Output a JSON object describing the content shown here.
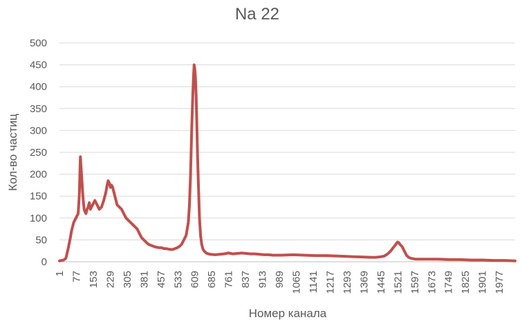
{
  "chart_data": {
    "type": "line",
    "title": "Na 22",
    "xlabel": "Номер канала",
    "ylabel": "Кол-во частиц",
    "ylim": [
      0,
      500
    ],
    "yticks": [
      0,
      50,
      100,
      150,
      200,
      250,
      300,
      350,
      400,
      450,
      500
    ],
    "xlim": [
      1,
      2048
    ],
    "xticks": [
      1,
      77,
      153,
      229,
      305,
      381,
      457,
      533,
      609,
      685,
      761,
      837,
      913,
      989,
      1065,
      1141,
      1217,
      1293,
      1369,
      1445,
      1521,
      1597,
      1673,
      1749,
      1825,
      1901,
      1977
    ],
    "grid": true,
    "legend": "none",
    "series_color": "#c0504d",
    "series": [
      {
        "x": [
          1,
          10,
          20,
          30,
          40,
          50,
          55,
          60,
          65,
          70,
          75,
          80,
          85,
          90,
          95,
          100,
          105,
          108,
          110,
          112,
          115,
          120,
          125,
          130,
          135,
          140,
          145,
          150,
          160,
          170,
          180,
          190,
          200,
          210,
          215,
          220,
          225,
          230,
          235,
          240,
          245,
          250,
          255,
          260,
          270,
          280,
          290,
          300,
          310,
          320,
          330,
          340,
          350,
          360,
          370,
          380,
          390,
          400,
          410,
          420,
          430,
          440,
          450,
          460,
          470,
          480,
          490,
          500,
          510,
          520,
          530,
          540,
          550,
          560,
          570,
          580,
          585,
          590,
          595,
          600,
          603,
          606,
          609,
          612,
          615,
          618,
          621,
          625,
          630,
          635,
          640,
          645,
          650,
          660,
          670,
          680,
          700,
          720,
          740,
          760,
          780,
          800,
          820,
          840,
          860,
          880,
          900,
          920,
          940,
          960,
          980,
          1000,
          1050,
          1100,
          1150,
          1200,
          1250,
          1300,
          1350,
          1400,
          1420,
          1440,
          1460,
          1470,
          1480,
          1490,
          1500,
          1510,
          1515,
          1520,
          1525,
          1530,
          1540,
          1550,
          1560,
          1570,
          1580,
          1590,
          1600,
          1650,
          1700,
          1750,
          1800,
          1850,
          1900,
          1950,
          2000,
          2048
        ],
        "y": [
          2,
          3,
          4,
          8,
          30,
          55,
          70,
          80,
          90,
          95,
          100,
          105,
          110,
          150,
          240,
          200,
          160,
          140,
          130,
          120,
          115,
          110,
          120,
          125,
          135,
          120,
          125,
          130,
          140,
          130,
          120,
          125,
          140,
          160,
          175,
          185,
          180,
          170,
          175,
          170,
          160,
          150,
          140,
          130,
          125,
          120,
          110,
          100,
          95,
          90,
          85,
          80,
          75,
          65,
          55,
          50,
          45,
          40,
          38,
          36,
          34,
          33,
          32,
          32,
          30,
          30,
          29,
          28,
          28,
          30,
          32,
          35,
          40,
          50,
          60,
          90,
          130,
          200,
          300,
          380,
          420,
          450,
          440,
          420,
          380,
          320,
          250,
          180,
          100,
          60,
          40,
          30,
          25,
          20,
          18,
          17,
          16,
          17,
          18,
          20,
          18,
          19,
          20,
          19,
          18,
          18,
          17,
          16,
          16,
          15,
          15,
          15,
          16,
          15,
          14,
          14,
          13,
          12,
          11,
          10,
          10,
          11,
          13,
          16,
          20,
          25,
          32,
          38,
          42,
          45,
          44,
          40,
          35,
          25,
          15,
          10,
          8,
          7,
          6,
          6,
          6,
          5,
          5,
          4,
          4,
          3,
          3,
          2
        ]
      }
    ]
  }
}
